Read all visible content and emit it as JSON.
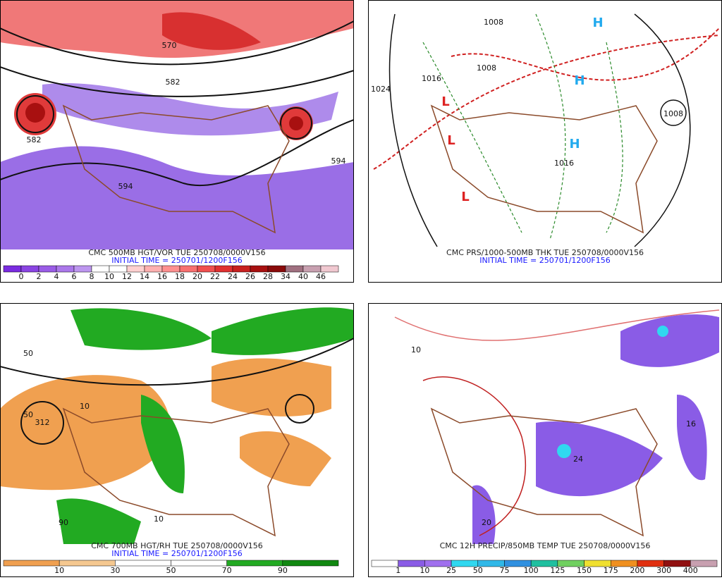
{
  "panels": [
    {
      "title": "CMC 500MB HGT/VOR TUE 250708/0000V156",
      "initial_time": "INITIAL TIME = 250701/1200F156",
      "colorbar": {
        "labels": [
          "0",
          "2",
          "4",
          "6",
          "8",
          "10",
          "12",
          "14",
          "16",
          "18",
          "20",
          "22",
          "24",
          "26",
          "28",
          "34",
          "40",
          "46"
        ],
        "colors": [
          "#7a2be0",
          "#8a44e2",
          "#9a5ce6",
          "#ab78ea",
          "#bd96ef",
          "#ffffff",
          "#ffffff",
          "#ffd0d0",
          "#ffb0b0",
          "#ff9090",
          "#f87070",
          "#f05050",
          "#e03030",
          "#c82020",
          "#a81010",
          "#8a0a0a",
          "#a07080",
          "#c8a0b0",
          "#f0c8d0"
        ]
      },
      "labels": [
        "570",
        "582",
        "582",
        "594",
        "594"
      ]
    },
    {
      "title": "CMC PRS/1000-500MB THK TUE 250708/0000V156",
      "initial_time": "INITIAL TIME = 250701/1200F156",
      "labels": [
        "1024",
        "1008",
        "1008",
        "1016",
        "1016",
        "1008",
        "H",
        "H",
        "H",
        "L",
        "L",
        "L"
      ]
    },
    {
      "title": "CMC 700MB HGT/RH TUE 250708/0000V156",
      "initial_time": "INITIAL TIME = 250701/1200F156",
      "colorbar": {
        "labels": [
          "10",
          "30",
          "50",
          "70",
          "90"
        ],
        "colors": [
          "#f0a050",
          "#f5c890",
          "#ffffff",
          "#ffffff",
          "#22aa22",
          "#118811"
        ]
      },
      "labels": [
        "50",
        "10",
        "312",
        "50",
        "90",
        "10"
      ]
    },
    {
      "title": "CMC 12H PRECIP/850MB TEMP TUE 250708/0000V156",
      "colorbar": {
        "labels": [
          "1",
          "10",
          "25",
          "50",
          "75",
          "100",
          "125",
          "150",
          "175",
          "200",
          "300",
          "400"
        ],
        "colors": [
          "#ffffff",
          "#8a5ce6",
          "#a070ee",
          "#30d8f0",
          "#30b8e8",
          "#3090e0",
          "#20c0a0",
          "#70d060",
          "#f0e030",
          "#f09020",
          "#e03010",
          "#901010",
          "#c8a0b0"
        ]
      },
      "labels": [
        "10",
        "20",
        "16",
        "24"
      ]
    }
  ]
}
